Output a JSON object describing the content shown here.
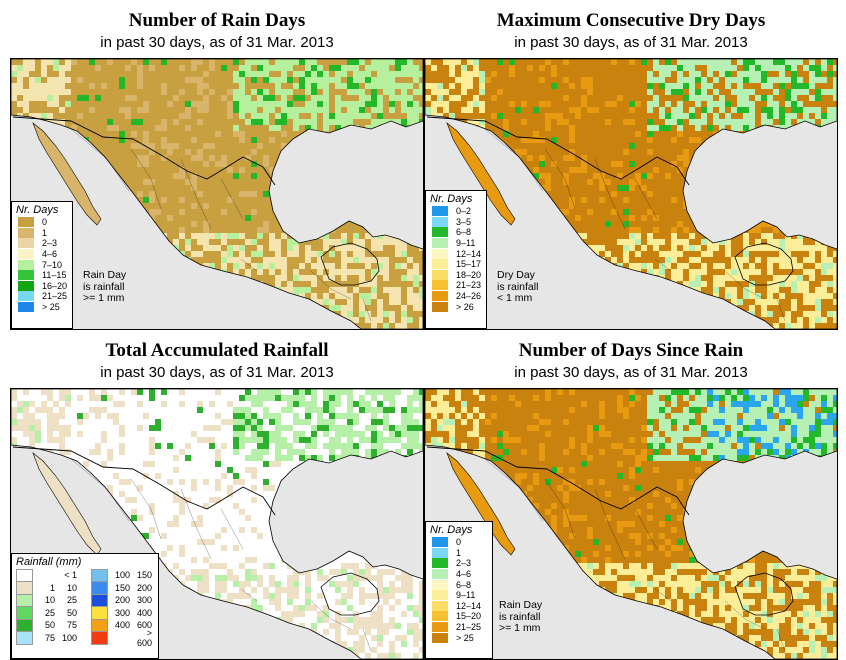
{
  "panels": [
    {
      "title": "Number of Rain Days",
      "subtitle": "in past 30 days, as of  31 Mar. 2013",
      "legend_title": "Nr. Days",
      "legend": [
        {
          "label": "0",
          "color": "#c8a040"
        },
        {
          "label": "1",
          "color": "#d9b56c"
        },
        {
          "label": "2–3",
          "color": "#ead5a6"
        },
        {
          "label": "4–6",
          "color": "#fbf3c6"
        },
        {
          "label": "7–10",
          "color": "#b7f09d"
        },
        {
          "label": "11–15",
          "color": "#34c43a"
        },
        {
          "label": "16–20",
          "color": "#11a411"
        },
        {
          "label": "21–25",
          "color": "#78d8f0"
        },
        {
          "label": "> 25",
          "color": "#1e86e6"
        }
      ],
      "note": [
        "Rain Day",
        "is rainfall",
        ">= 1 mm"
      ],
      "map_palette": {
        "land": "#c9a040",
        "land_alt": "#d9b56c",
        "coast": "#f3e4b0",
        "wet": "#b7f09d",
        "green": "#22b82a",
        "blue": "#1e86e6",
        "sea": "#e6e6e6"
      }
    },
    {
      "title": "Maximum Consecutive Dry Days",
      "subtitle": "in past 30 days, as of  31 Mar. 2013",
      "legend_title": "Nr. Days",
      "legend": [
        {
          "label": "0–2",
          "color": "#1e96ea"
        },
        {
          "label": "3–5",
          "color": "#7ad8f6"
        },
        {
          "label": "6–8",
          "color": "#22b82a"
        },
        {
          "label": "9–11",
          "color": "#b6f0b4"
        },
        {
          "label": "12–14",
          "color": "#fcf7c0"
        },
        {
          "label": "15–17",
          "color": "#fcee98"
        },
        {
          "label": "18–20",
          "color": "#fbdc64"
        },
        {
          "label": "21–23",
          "color": "#f7c030"
        },
        {
          "label": "24–26",
          "color": "#e89a10"
        },
        {
          "label": "> 26",
          "color": "#c9820e"
        }
      ],
      "note": [
        "Dry Day",
        "is rainfall",
        "< 1 mm"
      ],
      "map_palette": {
        "land": "#c9820e",
        "land_alt": "#e89a10",
        "coast": "#fcee98",
        "wet": "#b6f0b4",
        "green": "#22b82a",
        "blue": "#7ad8f6",
        "sea": "#e6e6e6"
      }
    },
    {
      "title": "Total Accumulated Rainfall",
      "subtitle": "in past 30 days, as of  31 Mar. 2013",
      "legend_title": "Rainfall (mm)",
      "legend_cols": [
        [
          {
            "lo": "",
            "hi": "< 1",
            "color": "#ffffff"
          },
          {
            "lo": "1",
            "hi": "10",
            "color": "#ede0c4"
          },
          {
            "lo": "10",
            "hi": "25",
            "color": "#b6f0a8"
          },
          {
            "lo": "25",
            "hi": "50",
            "color": "#60d860"
          },
          {
            "lo": "50",
            "hi": "75",
            "color": "#2eb02e"
          },
          {
            "lo": "75",
            "hi": "100",
            "color": "#a8e4f8"
          }
        ],
        [
          {
            "lo": "100",
            "hi": "150",
            "color": "#70c0f0"
          },
          {
            "lo": "150",
            "hi": "200",
            "color": "#3c8cf0"
          },
          {
            "lo": "200",
            "hi": "300",
            "color": "#1a50d8"
          },
          {
            "lo": "300",
            "hi": "400",
            "color": "#fce040"
          },
          {
            "lo": "400",
            "hi": "600",
            "color": "#f4a014"
          },
          {
            "lo": "",
            "hi": "> 600",
            "color": "#f03c10"
          }
        ]
      ],
      "map_palette": {
        "land": "#ffffff",
        "land_alt": "#ede0c4",
        "coast": "#ede0c4",
        "wet": "#b6f0a8",
        "green": "#2eb02e",
        "blue": "#3c8cf0",
        "sea": "#e6e6e6"
      }
    },
    {
      "title": "Number of Days Since Rain",
      "subtitle": "in past 30 days, as of  31 Mar. 2013",
      "legend_title": "Nr. Days",
      "legend": [
        {
          "label": "0",
          "color": "#1e96ea"
        },
        {
          "label": "1",
          "color": "#7ad8f6"
        },
        {
          "label": "2–3",
          "color": "#22b82a"
        },
        {
          "label": "4–6",
          "color": "#b6f0b4"
        },
        {
          "label": "6–8",
          "color": "#fcf7c0"
        },
        {
          "label": "9–11",
          "color": "#fcee98"
        },
        {
          "label": "12–14",
          "color": "#fbdc64"
        },
        {
          "label": "15–20",
          "color": "#f7c030"
        },
        {
          "label": "21–25",
          "color": "#e89a10"
        },
        {
          "label": "> 25",
          "color": "#c9820e"
        }
      ],
      "note": [
        "Rain Day",
        "is rainfall",
        ">= 1 mm"
      ],
      "map_palette": {
        "land": "#c9820e",
        "land_alt": "#e89a10",
        "coast": "#fcee98",
        "wet": "#b6f0b4",
        "green": "#22b82a",
        "blue": "#2aa6f0",
        "sea": "#e6e6e6"
      }
    }
  ]
}
